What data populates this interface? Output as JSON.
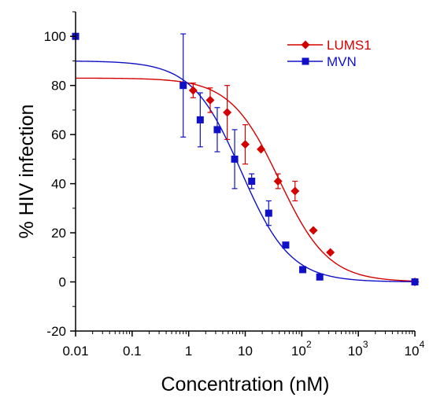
{
  "chart_data": {
    "type": "scatter",
    "title": "",
    "xlabel": "Concentration (nM)",
    "ylabel": "% HIV infection",
    "xscale": "log",
    "xlim": [
      0.01,
      10000
    ],
    "ylim": [
      -20,
      110
    ],
    "x_ticks": [
      {
        "value": 0.01,
        "label": "0.01"
      },
      {
        "value": 0.1,
        "label": "0.1"
      },
      {
        "value": 1,
        "label": "1"
      },
      {
        "value": 10,
        "label": "10"
      },
      {
        "value": 100,
        "label": "10",
        "sup": "2"
      },
      {
        "value": 1000,
        "label": "10",
        "sup": "3"
      },
      {
        "value": 10000,
        "label": "10",
        "sup": "4"
      }
    ],
    "y_ticks": [
      -20,
      0,
      20,
      40,
      60,
      80,
      100
    ],
    "grid": false,
    "legend_position": "top-right",
    "series": [
      {
        "name": "LUMS1",
        "color": "#d40000",
        "marker": "diamond",
        "points": [
          {
            "x": 1.2,
            "y": 78,
            "err": 3
          },
          {
            "x": 2.4,
            "y": 74,
            "err": 5
          },
          {
            "x": 4.8,
            "y": 69,
            "err": 11
          },
          {
            "x": 10,
            "y": 56,
            "err": 8
          },
          {
            "x": 19,
            "y": 54,
            "err": 0
          },
          {
            "x": 38,
            "y": 41,
            "err": 3
          },
          {
            "x": 76,
            "y": 37,
            "err": 4
          },
          {
            "x": 160,
            "y": 21,
            "err": 0
          },
          {
            "x": 320,
            "y": 12,
            "err": 0
          },
          {
            "x": 10000,
            "y": 0,
            "err": 0
          }
        ],
        "fit": {
          "top": 83,
          "bottom": 0,
          "ec50": 40,
          "hill": 1
        }
      },
      {
        "name": "MVN",
        "color": "#1010c8",
        "marker": "square",
        "points": [
          {
            "x": 0.01,
            "y": 100,
            "err": 0
          },
          {
            "x": 0.8,
            "y": 80,
            "err": 21
          },
          {
            "x": 1.6,
            "y": 66,
            "err": 11
          },
          {
            "x": 3.2,
            "y": 62,
            "err": 9
          },
          {
            "x": 6.5,
            "y": 50,
            "err": 12
          },
          {
            "x": 13,
            "y": 41,
            "err": 3
          },
          {
            "x": 26,
            "y": 28,
            "err": 5
          },
          {
            "x": 52,
            "y": 15,
            "err": 0
          },
          {
            "x": 104,
            "y": 5,
            "err": 0
          },
          {
            "x": 208,
            "y": 2,
            "err": 0
          },
          {
            "x": 10000,
            "y": 0,
            "err": 0
          }
        ],
        "fit": {
          "top": 90,
          "bottom": 0,
          "ec50": 8.5,
          "hill": 1
        }
      }
    ]
  }
}
